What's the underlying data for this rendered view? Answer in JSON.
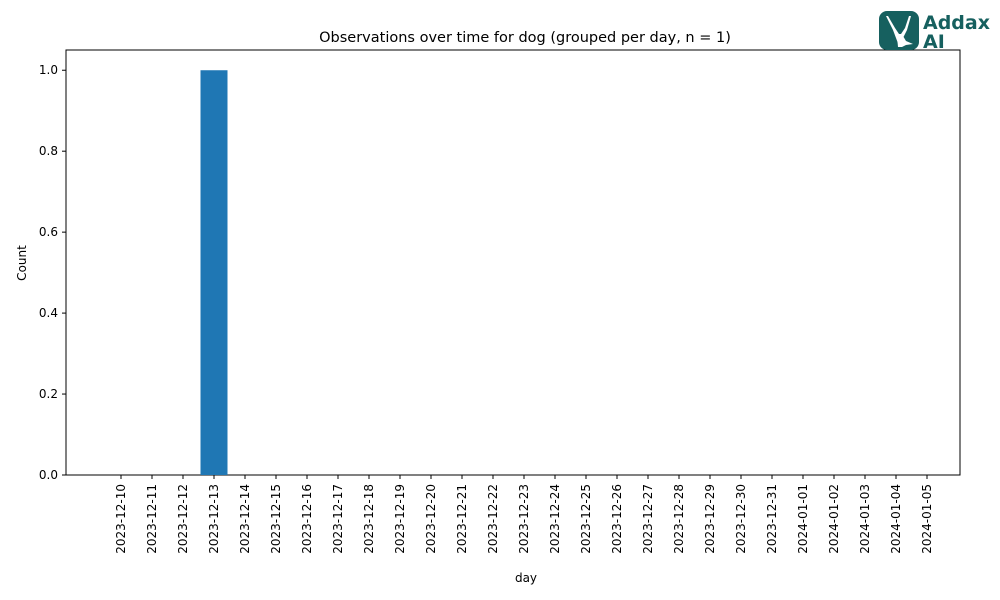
{
  "chart_data": {
    "type": "bar",
    "title": "Observations over time for dog (grouped per day, n = 1)",
    "xlabel": "day",
    "ylabel": "Count",
    "ylim": [
      0,
      1.05
    ],
    "yticks": [
      0.0,
      0.2,
      0.4,
      0.6,
      0.8,
      1.0
    ],
    "ytick_labels": [
      "0.0",
      "0.2",
      "0.4",
      "0.6",
      "0.8",
      "1.0"
    ],
    "categories": [
      "2023-12-10",
      "2023-12-11",
      "2023-12-12",
      "2023-12-13",
      "2023-12-14",
      "2023-12-15",
      "2023-12-16",
      "2023-12-17",
      "2023-12-18",
      "2023-12-19",
      "2023-12-20",
      "2023-12-21",
      "2023-12-22",
      "2023-12-23",
      "2023-12-24",
      "2023-12-25",
      "2023-12-26",
      "2023-12-27",
      "2023-12-28",
      "2023-12-29",
      "2023-12-30",
      "2023-12-31",
      "2024-01-01",
      "2024-01-02",
      "2024-01-03",
      "2024-01-04",
      "2024-01-05"
    ],
    "values": [
      0,
      0,
      0,
      1,
      0,
      0,
      0,
      0,
      0,
      0,
      0,
      0,
      0,
      0,
      0,
      0,
      0,
      0,
      0,
      0,
      0,
      0,
      0,
      0,
      0,
      0,
      0
    ],
    "bar_color": "#1f77b4",
    "grid": false,
    "legend": "none"
  },
  "logo": {
    "line1": "Addax",
    "line2": "AI",
    "color": "#16605f",
    "icon": "antelope-head-icon"
  }
}
